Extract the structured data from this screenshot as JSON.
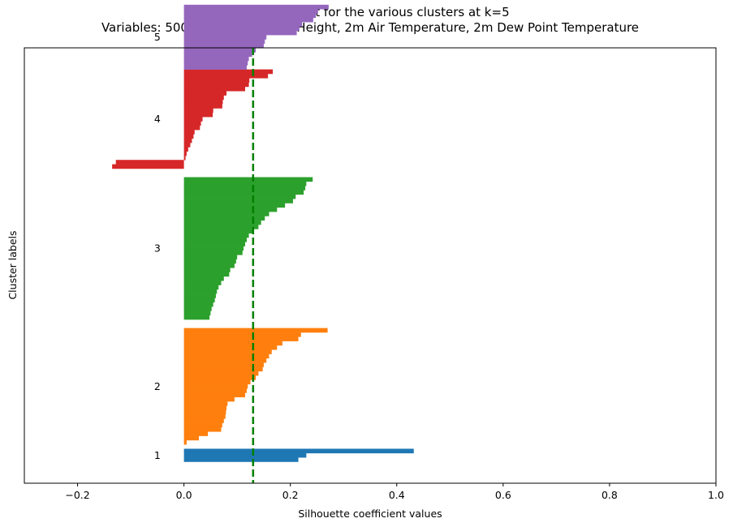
{
  "chart_data": {
    "type": "bar",
    "orientation": "horizontal",
    "title": "Silhouette plot for the various clusters at k=5",
    "subtitle": "Variables: 500hPa Geopotential Height, 2m Air Temperature, 2m Dew Point Temperature",
    "xlabel": "Silhouette coefficient values",
    "ylabel": "Cluster labels",
    "xlim": [
      -0.3,
      1.0
    ],
    "xticks": [
      -0.2,
      0.0,
      0.2,
      0.4,
      0.6,
      0.8,
      1.0
    ],
    "xtick_labels": [
      "−0.2",
      "0.0",
      "0.2",
      "0.4",
      "0.6",
      "0.8",
      "1.0"
    ],
    "ylim": [
      0,
      101
    ],
    "yticks": [],
    "grid": false,
    "legend": "none",
    "average_silhouette": 0.13,
    "average_line_color": "#008000",
    "series": [
      {
        "label": "1",
        "color": "#1f77b4",
        "y_start": 5,
        "values": [
          0.432,
          0.23,
          0.215
        ]
      },
      {
        "label": "2",
        "color": "#ff7f0e",
        "y_start": 9,
        "values": [
          0.27,
          0.22,
          0.215,
          0.185,
          0.175,
          0.165,
          0.16,
          0.155,
          0.15,
          0.148,
          0.14,
          0.135,
          0.125,
          0.12,
          0.118,
          0.115,
          0.095,
          0.082,
          0.08,
          0.079,
          0.078,
          0.075,
          0.072,
          0.07,
          0.045,
          0.028,
          0.005
        ]
      },
      {
        "label": "3",
        "color": "#2ca02c",
        "y_start": 38,
        "values": [
          0.242,
          0.23,
          0.228,
          0.225,
          0.21,
          0.205,
          0.19,
          0.175,
          0.16,
          0.152,
          0.145,
          0.14,
          0.13,
          0.122,
          0.118,
          0.115,
          0.112,
          0.11,
          0.1,
          0.098,
          0.095,
          0.087,
          0.085,
          0.075,
          0.07,
          0.065,
          0.062,
          0.06,
          0.058,
          0.055,
          0.052,
          0.05,
          0.048
        ]
      },
      {
        "label": "4",
        "color": "#d62728",
        "y_start": 73,
        "values": [
          0.167,
          0.158,
          0.123,
          0.122,
          0.115,
          0.08,
          0.075,
          0.073,
          0.072,
          0.055,
          0.054,
          0.035,
          0.032,
          0.03,
          0.02,
          0.018,
          0.015,
          0.012,
          0.008,
          0.005,
          0.003,
          -0.128,
          -0.135
        ]
      },
      {
        "label": "5",
        "color": "#9467bd",
        "y_start": 96,
        "values": [
          0.272,
          0.252,
          0.248,
          0.243,
          0.222,
          0.217,
          0.212,
          0.155,
          0.152,
          0.15,
          0.135,
          0.128,
          0.122,
          0.12,
          0.118
        ]
      }
    ]
  }
}
